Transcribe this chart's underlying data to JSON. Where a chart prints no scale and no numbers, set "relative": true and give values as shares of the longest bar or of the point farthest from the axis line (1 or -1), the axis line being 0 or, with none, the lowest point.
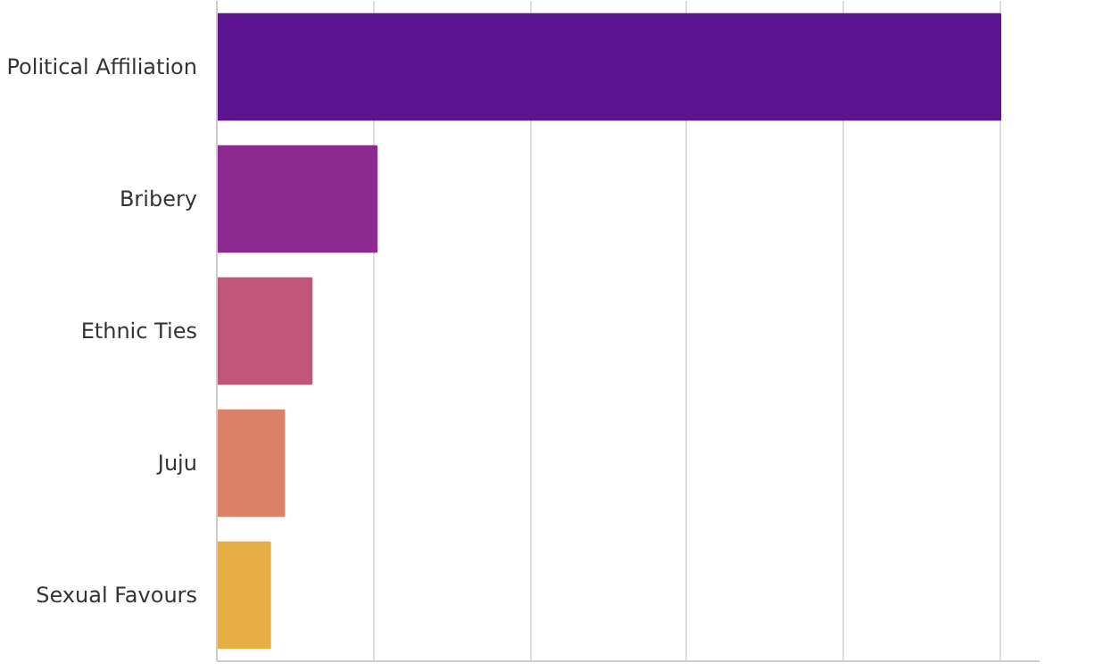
{
  "chart_data": {
    "type": "bar",
    "orientation": "horizontal",
    "relative": true,
    "categories": [
      "Political Affiliation",
      "Bribery",
      "Ethnic Ties",
      "Juju",
      "Sexual Favours"
    ],
    "values": [
      1,
      0.204,
      0.121,
      0.086,
      0.068
    ],
    "colors": [
      "#5c1490",
      "#8e2a8f",
      "#c0567a",
      "#dc8068",
      "#e6ae45"
    ],
    "grid": "x",
    "tick_labels": "y"
  }
}
